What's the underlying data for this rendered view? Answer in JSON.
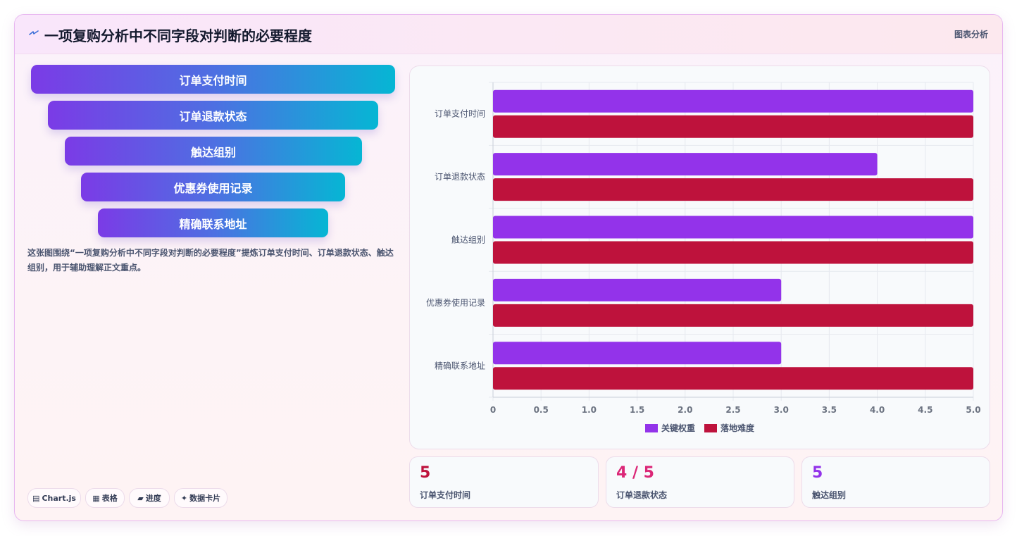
{
  "header": {
    "title": "一项复购分析中不同字段对判断的必要程度",
    "tag": "图表分析",
    "logo_icon": "lightning-icon"
  },
  "funnel": {
    "items": [
      "订单支付时间",
      "订单退款状态",
      "触达组别",
      "优惠券使用记录",
      "精确联系地址"
    ]
  },
  "description": "这张图围绕“一项复购分析中不同字段对判断的必要程度”提炼订单支付时间、订单退款状态、触达组别，用于辅助理解正文重点。",
  "chips": [
    {
      "icon": "▤",
      "label": "Chart.js"
    },
    {
      "icon": "▦",
      "label": "表格"
    },
    {
      "icon": "▰",
      "label": "进度"
    },
    {
      "icon": "✦",
      "label": "数据卡片"
    }
  ],
  "chart_data": {
    "type": "bar",
    "orientation": "horizontal",
    "categories": [
      "订单支付时间",
      "订单退款状态",
      "触达组别",
      "优惠券使用记录",
      "精确联系地址"
    ],
    "series": [
      {
        "name": "关键权重",
        "values": [
          5,
          4,
          5,
          3,
          3
        ],
        "color": "#9333ea"
      },
      {
        "name": "落地难度",
        "values": [
          5,
          5,
          5,
          5,
          5
        ],
        "color": "#be123c"
      }
    ],
    "xlim": [
      0,
      5
    ],
    "xticks": [
      "0",
      "0.5",
      "1.0",
      "1.5",
      "2.0",
      "2.5",
      "3.0",
      "3.5",
      "4.0",
      "4.5",
      "5.0"
    ],
    "grid": true,
    "legend": "bottom"
  },
  "stats": [
    {
      "value": "5",
      "label": "订单支付时间",
      "color": "#be123c"
    },
    {
      "value": "4 / 5",
      "label": "订单退款状态",
      "color": "#db2777"
    },
    {
      "value": "5",
      "label": "触达组别",
      "color": "#9333ea"
    }
  ]
}
